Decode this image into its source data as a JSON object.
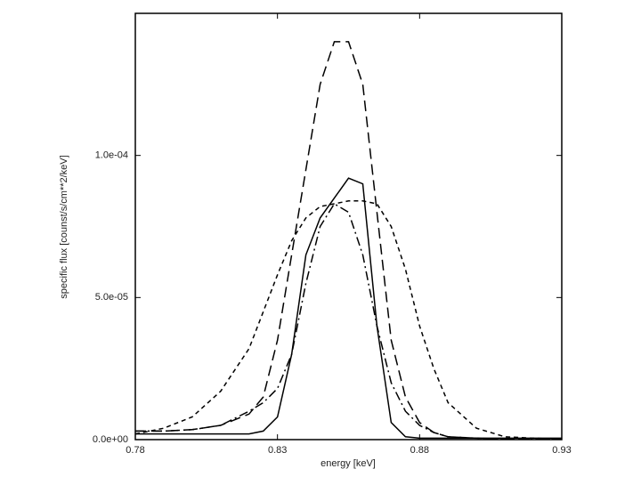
{
  "chart_data": {
    "type": "line",
    "xlabel": "energy [keV]",
    "ylabel": "specific flux [counst/s/cm**2/keV]",
    "x": [
      0.78,
      0.79,
      0.8,
      0.81,
      0.82,
      0.825,
      0.83,
      0.835,
      0.84,
      0.845,
      0.85,
      0.855,
      0.86,
      0.865,
      0.87,
      0.875,
      0.88,
      0.885,
      0.89,
      0.9,
      0.91,
      0.92,
      0.93
    ],
    "series": [
      {
        "color": "#000000",
        "dash": "none",
        "values": [
          2e-06,
          2e-06,
          2e-06,
          2e-06,
          2e-06,
          3e-06,
          8e-06,
          3e-05,
          6.5e-05,
          7.8e-05,
          8.5e-05,
          9.2e-05,
          9e-05,
          4e-05,
          6e-06,
          1e-06,
          5e-07,
          5e-07,
          5e-07,
          5e-07,
          5e-07,
          5e-07,
          5e-07
        ]
      },
      {
        "color": "#000000",
        "dash": "12,6",
        "values": [
          3e-06,
          3e-06,
          3.5e-06,
          5e-06,
          9e-06,
          1.5e-05,
          3.5e-05,
          6.5e-05,
          9.5e-05,
          0.000125,
          0.00014,
          0.00014,
          0.000125,
          8e-05,
          3.5e-05,
          1.5e-05,
          6e-06,
          2.5e-06,
          1e-06,
          5e-07,
          2e-07,
          1e-07,
          1e-07
        ]
      },
      {
        "color": "#000000",
        "dash": "10,4,2,4",
        "values": [
          3e-06,
          3e-06,
          3.5e-06,
          5e-06,
          1e-05,
          1.3e-05,
          1.8e-05,
          3e-05,
          5.5e-05,
          7.5e-05,
          8.3e-05,
          8e-05,
          6.5e-05,
          4e-05,
          2e-05,
          1e-05,
          5e-06,
          2.5e-06,
          1e-06,
          5e-07,
          2e-07,
          1e-07,
          1e-07
        ]
      },
      {
        "color": "#000000",
        "dash": "5,4",
        "values": [
          2e-06,
          4e-06,
          8e-06,
          1.7e-05,
          3.2e-05,
          4.5e-05,
          5.8e-05,
          7e-05,
          7.8e-05,
          8.2e-05,
          8.3e-05,
          8.4e-05,
          8.4e-05,
          8.3e-05,
          7.5e-05,
          6e-05,
          4e-05,
          2.5e-05,
          1.3e-05,
          4e-06,
          1e-06,
          5e-07,
          2e-07
        ]
      }
    ],
    "xlim": [
      0.78,
      0.93
    ],
    "xticks": [
      0.78,
      0.83,
      0.88,
      0.93
    ],
    "ylim": [
      0,
      0.00015
    ],
    "yticks": [
      {
        "value": 0,
        "label": "0.0e+00"
      },
      {
        "value": 5e-05,
        "label": "5.0e-05"
      },
      {
        "value": 0.0001,
        "label": "1.0e-04"
      }
    ]
  }
}
